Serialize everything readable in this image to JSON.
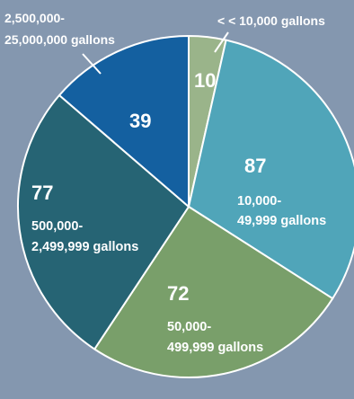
{
  "chart_data": {
    "type": "pie",
    "start_angle_deg": 0,
    "direction": "clockwise",
    "slices": [
      {
        "key": "s10",
        "value": 10,
        "value_label": "10",
        "category": "< 10,000 gallons",
        "color": "#9ab48a"
      },
      {
        "key": "s87",
        "value": 87,
        "value_label": "87",
        "category": [
          "10,000-",
          "49,999 gallons"
        ],
        "color": "#50a5b9"
      },
      {
        "key": "s72",
        "value": 72,
        "value_label": "72",
        "category": [
          "50,000-",
          "499,999 gallons"
        ],
        "color": "#799f6a"
      },
      {
        "key": "s77",
        "value": 77,
        "value_label": "77",
        "category": [
          "500,000-",
          "2,499,999 gallons"
        ],
        "color": "#266474"
      },
      {
        "key": "s39",
        "value": 39,
        "value_label": "39",
        "category": [
          "2,500,000-",
          "25,000,000 gallons"
        ],
        "color": "#1460a0"
      }
    ],
    "legend": "none"
  }
}
